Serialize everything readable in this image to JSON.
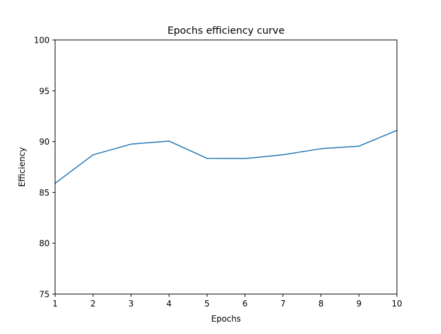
{
  "chart_data": {
    "type": "line",
    "title": "Epochs efficiency curve",
    "xlabel": "Epochs",
    "ylabel": "Efficiency",
    "xlim": [
      1,
      10
    ],
    "ylim": [
      75,
      100
    ],
    "x_ticks": [
      1,
      2,
      3,
      4,
      5,
      6,
      7,
      8,
      9,
      10
    ],
    "y_ticks": [
      75,
      80,
      85,
      90,
      95,
      100
    ],
    "grid": false,
    "legend": "none",
    "series": [
      {
        "color": "#1f77b4",
        "x": [
          1,
          2,
          3,
          4,
          5,
          6,
          7,
          8,
          9,
          10
        ],
        "values": [
          85.9,
          88.7,
          89.75,
          90.05,
          88.35,
          88.33,
          88.7,
          89.3,
          89.55,
          91.1
        ]
      }
    ]
  }
}
